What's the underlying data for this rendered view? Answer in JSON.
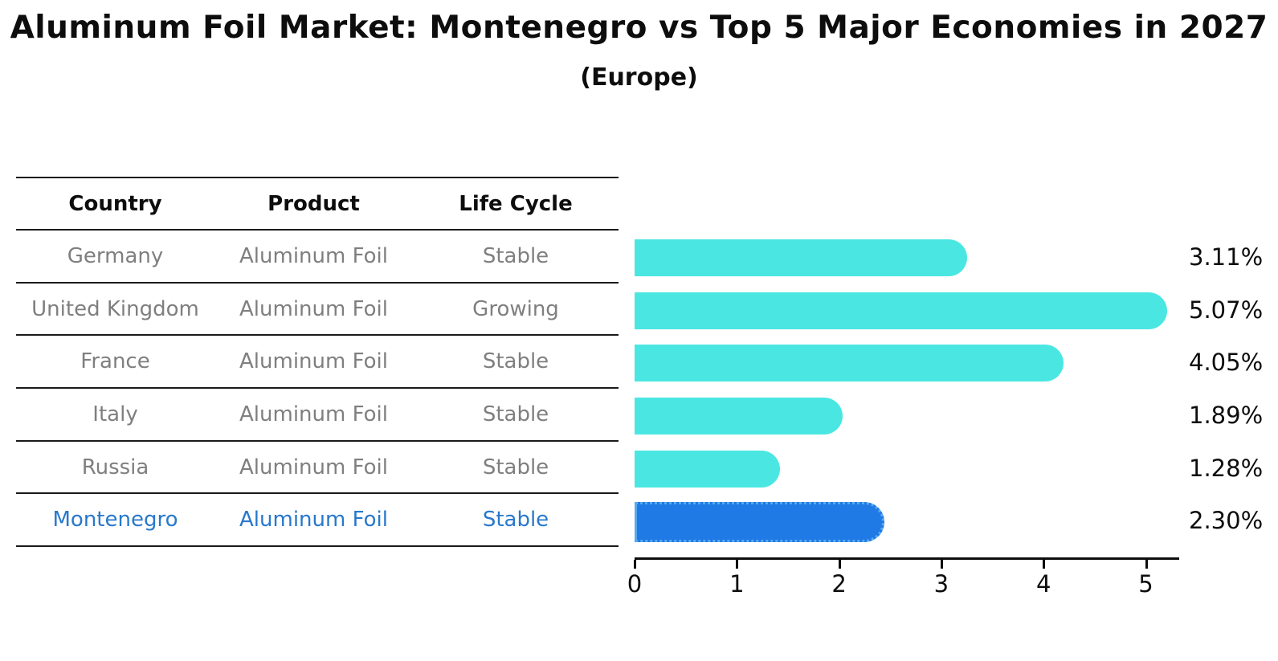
{
  "title": "Aluminum Foil Market: Montenegro vs Top 5 Major Economies in 2027",
  "subtitle": "(Europe)",
  "table": {
    "headers": [
      "Country",
      "Product",
      "Life Cycle"
    ],
    "rows": [
      {
        "country": "Germany",
        "product": "Aluminum Foil",
        "life_cycle": "Stable",
        "highlight": false
      },
      {
        "country": "United Kingdom",
        "product": "Aluminum Foil",
        "life_cycle": "Growing",
        "highlight": false
      },
      {
        "country": "France",
        "product": "Aluminum Foil",
        "life_cycle": "Stable",
        "highlight": false
      },
      {
        "country": "Italy",
        "product": "Aluminum Foil",
        "life_cycle": "Stable",
        "highlight": false
      },
      {
        "country": "Russia",
        "product": "Aluminum Foil",
        "life_cycle": "Stable",
        "highlight": false
      },
      {
        "country": "Montenegro",
        "product": "Aluminum Foil",
        "life_cycle": "Stable",
        "highlight": true
      }
    ]
  },
  "chart_data": {
    "type": "bar",
    "orientation": "horizontal",
    "title": "Aluminum Foil Market: Montenegro vs Top 5 Major Economies in 2027",
    "subtitle": "(Europe)",
    "categories": [
      "Germany",
      "United Kingdom",
      "France",
      "Italy",
      "Russia",
      "Montenegro"
    ],
    "values": [
      3.11,
      5.07,
      4.05,
      1.89,
      1.28,
      2.3
    ],
    "value_labels": [
      "3.11%",
      "5.07%",
      "4.05%",
      "1.89%",
      "1.28%",
      "2.30%"
    ],
    "x_ticks": [
      "0",
      "1",
      "2",
      "3",
      "4",
      "5"
    ],
    "xlim": [
      0,
      5.32
    ],
    "xlabel": "",
    "ylabel": "",
    "grid": false,
    "legend": false,
    "highlight_index": 5,
    "highlight_category": "Montenegro"
  },
  "colors": {
    "bar": "#4ae7e2",
    "highlight_bar": "#207ae6",
    "highlight_edge": "#58aaf0",
    "highlight_text": "#2878cc",
    "text": "#0d0d0d",
    "muted_text": "#7f7f7f"
  }
}
